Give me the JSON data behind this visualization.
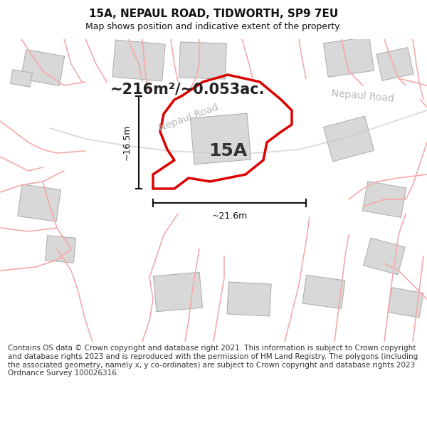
{
  "title": "15A, NEPAUL ROAD, TIDWORTH, SP9 7EU",
  "subtitle": "Map shows position and indicative extent of the property.",
  "area_label": "~216m²/~0.053ac.",
  "plot_label": "15A",
  "road_label_map": "Nepaul Road",
  "road_label_right": "Nepaul Road",
  "dim_width": "~21.6m",
  "dim_height": "~16.5m",
  "footer": "Contains OS data © Crown copyright and database right 2021. This information is subject to Crown copyright and database rights 2023 and is reproduced with the permission of HM Land Registry. The polygons (including the associated geometry, namely x, y co-ordinates) are subject to Crown copyright and database rights 2023 Ordnance Survey 100026316.",
  "bg_color": "#ffffff",
  "map_bg": "#f0f0f0",
  "plot_edge_color": "#dd0000",
  "road_line_color": "#f5aaaa",
  "road_line_color2": "#c8c8c8",
  "building_fill": "#d8d8d8",
  "building_edge": "#c0c0c0",
  "dim_color": "#111111",
  "title_color": "#111111",
  "footer_color": "#333333",
  "road_text_color": "#b8b8b8",
  "area_text_color": "#222222",
  "title_fontsize": 11,
  "subtitle_fontsize": 9,
  "footer_fontsize": 7.5,
  "plot_label_fontsize": 18,
  "area_label_fontsize": 15,
  "road_label_fontsize": 10
}
